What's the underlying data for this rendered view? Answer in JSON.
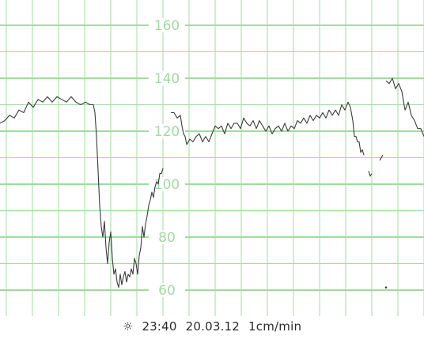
{
  "chart_data": {
    "type": "line",
    "title": "",
    "xlabel": "",
    "ylabel": "",
    "ylim": [
      55,
      170
    ],
    "y_ticks": [
      "60",
      "80",
      "100",
      "120",
      "140",
      "160"
    ],
    "grid": true,
    "colors": {
      "grid": "#9fdc9f",
      "grid_major": "#7fd07f",
      "label": "#a3d9a3",
      "trace": "#3a3a3a"
    },
    "series": [
      {
        "segments": [
          [
            [
              0,
              123
            ],
            [
              6,
              124
            ],
            [
              12,
              126
            ],
            [
              18,
              125
            ],
            [
              24,
              128
            ],
            [
              30,
              127
            ],
            [
              36,
              131
            ],
            [
              42,
              129
            ],
            [
              48,
              132
            ],
            [
              54,
              131
            ],
            [
              60,
              133
            ],
            [
              66,
              131
            ],
            [
              72,
              133
            ],
            [
              78,
              132
            ],
            [
              84,
              131
            ],
            [
              90,
              133
            ],
            [
              96,
              131
            ],
            [
              102,
              130
            ],
            [
              108,
              131
            ],
            [
              114,
              130
            ],
            [
              118,
              130
            ],
            [
              120,
              127
            ],
            [
              122,
              118
            ],
            [
              124,
              105
            ],
            [
              126,
              92
            ],
            [
              128,
              84
            ],
            [
              130,
              80
            ],
            [
              132,
              86
            ],
            [
              134,
              76
            ],
            [
              136,
              70
            ],
            [
              138,
              78
            ],
            [
              140,
              82
            ],
            [
              142,
              72
            ],
            [
              144,
              66
            ],
            [
              146,
              68
            ],
            [
              148,
              63
            ],
            [
              150,
              61
            ],
            [
              152,
              66
            ],
            [
              154,
              62
            ],
            [
              156,
              65
            ],
            [
              158,
              67
            ],
            [
              160,
              63
            ],
            [
              162,
              66
            ],
            [
              164,
              65
            ],
            [
              166,
              68
            ],
            [
              168,
              66
            ],
            [
              170,
              72
            ],
            [
              172,
              70
            ],
            [
              174,
              66
            ],
            [
              176,
              73
            ],
            [
              178,
              76
            ],
            [
              180,
              84
            ],
            [
              182,
              80
            ],
            [
              184,
              85
            ],
            [
              186,
              88
            ],
            [
              188,
              92
            ],
            [
              190,
              94
            ],
            [
              192,
              97
            ],
            [
              194,
              95
            ],
            [
              196,
              99
            ],
            [
              198,
              101
            ],
            [
              200,
              100
            ],
            [
              202,
              104
            ],
            [
              204,
              104
            ],
            [
              206,
              106
            ]
          ],
          [
            [
              216,
              127
            ],
            [
              220,
              127
            ],
            [
              224,
              125
            ],
            [
              228,
              126
            ],
            [
              230,
              122
            ],
            [
              232,
              119
            ],
            [
              234,
              118
            ],
            [
              236,
              115
            ],
            [
              240,
              117
            ],
            [
              244,
              116
            ],
            [
              248,
              118
            ],
            [
              252,
              119
            ],
            [
              256,
              116
            ],
            [
              260,
              118
            ],
            [
              264,
              116
            ],
            [
              268,
              119
            ],
            [
              272,
              122
            ],
            [
              276,
              121
            ],
            [
              280,
              122
            ],
            [
              284,
              119
            ],
            [
              288,
              123
            ],
            [
              292,
              121
            ],
            [
              296,
              123
            ],
            [
              300,
              123
            ],
            [
              304,
              121
            ],
            [
              308,
              125
            ],
            [
              312,
              123
            ],
            [
              316,
              122
            ],
            [
              320,
              124
            ],
            [
              324,
              121
            ],
            [
              328,
              124
            ],
            [
              332,
              122
            ],
            [
              336,
              120
            ],
            [
              340,
              122
            ],
            [
              344,
              119
            ],
            [
              348,
              121
            ],
            [
              352,
              122
            ],
            [
              356,
              120
            ],
            [
              360,
              123
            ],
            [
              364,
              120
            ],
            [
              368,
              122
            ],
            [
              372,
              121
            ],
            [
              376,
              124
            ],
            [
              380,
              123
            ],
            [
              384,
              125
            ],
            [
              388,
              123
            ],
            [
              392,
              126
            ],
            [
              396,
              124
            ],
            [
              400,
              126
            ],
            [
              404,
              125
            ],
            [
              408,
              127
            ],
            [
              412,
              125
            ],
            [
              416,
              128
            ],
            [
              420,
              126
            ],
            [
              424,
              128
            ],
            [
              428,
              126
            ],
            [
              432,
              130
            ],
            [
              436,
              128
            ],
            [
              440,
              131
            ],
            [
              443,
              129
            ],
            [
              446,
              124
            ],
            [
              448,
              118
            ],
            [
              450,
              118
            ],
            [
              452,
              116
            ],
            [
              454,
              116
            ],
            [
              456,
              112
            ],
            [
              458,
              113
            ],
            [
              460,
              111
            ]
          ],
          [
            [
              466,
              105
            ],
            [
              468,
              103
            ],
            [
              470,
              104
            ]
          ],
          [
            [
              480,
              109
            ],
            [
              484,
              111
            ]
          ],
          [
            [
              488,
              139
            ],
            [
              492,
              138
            ],
            [
              496,
              140
            ],
            [
              500,
              136
            ],
            [
              504,
              138
            ],
            [
              508,
              135
            ],
            [
              512,
              128
            ],
            [
              516,
              131
            ],
            [
              520,
              126
            ],
            [
              524,
              124
            ],
            [
              528,
              121
            ],
            [
              532,
              121
            ],
            [
              536,
              118
            ]
          ]
        ]
      }
    ],
    "artifacts": [
      [
        488,
        61
      ]
    ]
  },
  "footer": {
    "icon": "sun-icon",
    "time": "23:40",
    "date": "20.03.12",
    "speed": "1cm/min"
  }
}
